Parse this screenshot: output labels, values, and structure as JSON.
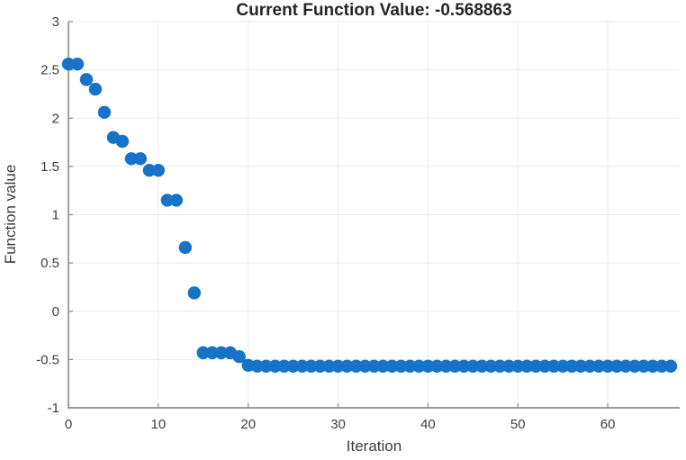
{
  "figure": {
    "background": "#ffffff"
  },
  "chart_data": {
    "type": "scatter",
    "title": "Current Function Value: -0.568863",
    "current_function_value": -0.568863,
    "xlabel": "Iteration",
    "ylabel": "Function value",
    "xlim": [
      0,
      68
    ],
    "ylim": [
      -1,
      3
    ],
    "xticks": [
      0,
      10,
      20,
      30,
      40,
      50,
      60
    ],
    "yticks": [
      -1,
      -0.5,
      0,
      0.5,
      1,
      1.5,
      2,
      2.5,
      3
    ],
    "grid": true,
    "legend": "none",
    "marker": "filled-circle",
    "marker_diameter_px": 14.4,
    "colors": {
      "marker": "#1673c8",
      "grid": "#ebebeb",
      "axis": "#8c8c8c",
      "tick_text": "#3d3d3d",
      "title_text": "#262626"
    },
    "x": [
      0,
      1,
      2,
      3,
      4,
      5,
      6,
      7,
      8,
      9,
      10,
      11,
      12,
      13,
      14,
      15,
      16,
      17,
      18,
      19,
      20,
      21,
      22,
      23,
      24,
      25,
      26,
      27,
      28,
      29,
      30,
      31,
      32,
      33,
      34,
      35,
      36,
      37,
      38,
      39,
      40,
      41,
      42,
      43,
      44,
      45,
      46,
      47,
      48,
      49,
      50,
      51,
      52,
      53,
      54,
      55,
      56,
      57,
      58,
      59,
      60,
      61,
      62,
      63,
      64,
      65,
      66,
      67
    ],
    "values": [
      2.56,
      2.56,
      2.4,
      2.3,
      2.06,
      1.8,
      1.76,
      1.58,
      1.58,
      1.46,
      1.46,
      1.15,
      1.15,
      0.66,
      0.19,
      -0.43,
      -0.43,
      -0.43,
      -0.43,
      -0.47,
      -0.56,
      -0.5689,
      -0.5689,
      -0.5689,
      -0.5689,
      -0.5689,
      -0.5689,
      -0.5689,
      -0.5689,
      -0.5689,
      -0.5689,
      -0.5689,
      -0.5689,
      -0.5689,
      -0.5689,
      -0.5689,
      -0.5689,
      -0.5689,
      -0.5689,
      -0.5689,
      -0.5689,
      -0.5689,
      -0.5689,
      -0.5689,
      -0.5689,
      -0.5689,
      -0.5689,
      -0.5689,
      -0.5689,
      -0.5689,
      -0.5689,
      -0.5689,
      -0.5689,
      -0.5689,
      -0.5689,
      -0.5689,
      -0.5689,
      -0.5689,
      -0.5689,
      -0.5689,
      -0.5689,
      -0.5689,
      -0.5689,
      -0.5689,
      -0.5689,
      -0.5689,
      -0.5689,
      -0.5689
    ]
  }
}
